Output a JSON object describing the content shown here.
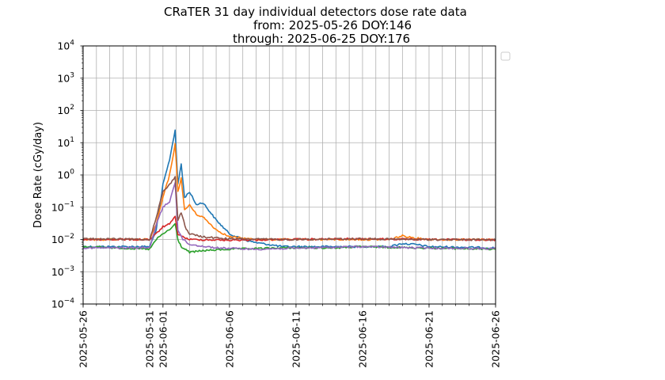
{
  "chart_data": {
    "type": "line",
    "title_lines": [
      "CRaTER 31 day individual detectors dose rate data",
      "from: 2025-05-26 DOY:146",
      "through: 2025-06-25 DOY:176"
    ],
    "xlabel": "",
    "ylabel": "Dose Rate (cGy/day)",
    "y_scale": "log",
    "ylim": [
      0.0001,
      10000
    ],
    "y_ticks": [
      {
        "value": 0.0001,
        "base": "10",
        "exp": "−4"
      },
      {
        "value": 0.001,
        "base": "10",
        "exp": "−3"
      },
      {
        "value": 0.01,
        "base": "10",
        "exp": "−2"
      },
      {
        "value": 0.1,
        "base": "10",
        "exp": "−1"
      },
      {
        "value": 1,
        "base": "10",
        "exp": "0"
      },
      {
        "value": 10,
        "base": "10",
        "exp": "1"
      },
      {
        "value": 100,
        "base": "10",
        "exp": "2"
      },
      {
        "value": 1000,
        "base": "10",
        "exp": "3"
      },
      {
        "value": 10000,
        "base": "10",
        "exp": "4"
      }
    ],
    "x_range": [
      "2025-05-26",
      "2025-06-26"
    ],
    "x_tick_labels": [
      "2025-05-26",
      "2025-05-31",
      "2025-06-01",
      "2025-06-06",
      "2025-06-11",
      "2025-06-16",
      "2025-06-21",
      "2025-06-26"
    ],
    "grid": true,
    "legend": "outside-right (empty)",
    "series": [
      {
        "color": "#1f77b4",
        "points": [
          [
            "2025-05-26",
            0.006
          ],
          [
            "2025-05-31",
            0.006
          ],
          [
            "2025-05-31T12:00",
            0.02
          ],
          [
            "2025-06-01",
            0.5
          ],
          [
            "2025-06-01T12:00",
            3
          ],
          [
            "2025-06-01T22:00",
            25
          ],
          [
            "2025-06-02T03:00",
            0.5
          ],
          [
            "2025-06-02T09:00",
            2.2
          ],
          [
            "2025-06-02T15:00",
            0.2
          ],
          [
            "2025-06-03",
            0.3
          ],
          [
            "2025-06-03T12:00",
            0.12
          ],
          [
            "2025-06-04",
            0.14
          ],
          [
            "2025-06-05",
            0.04
          ],
          [
            "2025-06-06",
            0.015
          ],
          [
            "2025-06-07",
            0.01
          ],
          [
            "2025-06-08",
            0.008
          ],
          [
            "2025-06-10",
            0.006
          ],
          [
            "2025-06-14",
            0.006
          ],
          [
            "2025-06-18",
            0.006
          ],
          [
            "2025-06-19",
            0.0075
          ],
          [
            "2025-06-20",
            0.007
          ],
          [
            "2025-06-21",
            0.006
          ],
          [
            "2025-06-26",
            0.0055
          ]
        ]
      },
      {
        "color": "#ff7f0e",
        "points": [
          [
            "2025-05-26",
            0.01
          ],
          [
            "2025-05-31",
            0.01
          ],
          [
            "2025-05-31T12:00",
            0.03
          ],
          [
            "2025-06-01",
            0.2
          ],
          [
            "2025-06-01T12:00",
            1.0
          ],
          [
            "2025-06-01T22:00",
            9
          ],
          [
            "2025-06-02T03:00",
            0.3
          ],
          [
            "2025-06-02T09:00",
            0.8
          ],
          [
            "2025-06-02T15:00",
            0.08
          ],
          [
            "2025-06-03",
            0.12
          ],
          [
            "2025-06-03T12:00",
            0.06
          ],
          [
            "2025-06-04",
            0.05
          ],
          [
            "2025-06-05",
            0.02
          ],
          [
            "2025-06-06",
            0.012
          ],
          [
            "2025-06-08",
            0.01
          ],
          [
            "2025-06-10",
            0.01
          ],
          [
            "2025-06-16",
            0.01
          ],
          [
            "2025-06-18",
            0.01
          ],
          [
            "2025-06-19",
            0.013
          ],
          [
            "2025-06-20",
            0.011
          ],
          [
            "2025-06-21",
            0.01
          ],
          [
            "2025-06-26",
            0.01
          ]
        ]
      },
      {
        "color": "#2ca02c",
        "points": [
          [
            "2025-05-26",
            0.006
          ],
          [
            "2025-05-31",
            0.005
          ],
          [
            "2025-05-31T12:00",
            0.01
          ],
          [
            "2025-06-01",
            0.015
          ],
          [
            "2025-06-01T12:00",
            0.02
          ],
          [
            "2025-06-01T22:00",
            0.03
          ],
          [
            "2025-06-02T03:00",
            0.01
          ],
          [
            "2025-06-02T09:00",
            0.006
          ],
          [
            "2025-06-03",
            0.004
          ],
          [
            "2025-06-04",
            0.0045
          ],
          [
            "2025-06-06",
            0.005
          ],
          [
            "2025-06-10",
            0.0055
          ],
          [
            "2025-06-14",
            0.0055
          ],
          [
            "2025-06-16",
            0.006
          ],
          [
            "2025-06-20",
            0.0055
          ],
          [
            "2025-06-26",
            0.005
          ]
        ]
      },
      {
        "color": "#d62728",
        "points": [
          [
            "2025-05-26",
            0.01
          ],
          [
            "2025-05-31",
            0.01
          ],
          [
            "2025-05-31T12:00",
            0.015
          ],
          [
            "2025-06-01",
            0.025
          ],
          [
            "2025-06-01T12:00",
            0.03
          ],
          [
            "2025-06-01T22:00",
            0.05
          ],
          [
            "2025-06-02T03:00",
            0.015
          ],
          [
            "2025-06-02T12:00",
            0.012
          ],
          [
            "2025-06-03",
            0.01
          ],
          [
            "2025-06-06",
            0.0095
          ],
          [
            "2025-06-10",
            0.01
          ],
          [
            "2025-06-16",
            0.0105
          ],
          [
            "2025-06-20",
            0.01
          ],
          [
            "2025-06-26",
            0.0098
          ]
        ]
      },
      {
        "color": "#9467bd",
        "points": [
          [
            "2025-05-26",
            0.0055
          ],
          [
            "2025-05-31",
            0.0055
          ],
          [
            "2025-05-31T12:00",
            0.03
          ],
          [
            "2025-06-01",
            0.1
          ],
          [
            "2025-06-01T12:00",
            0.15
          ],
          [
            "2025-06-01T22:00",
            0.6
          ],
          [
            "2025-06-02T03:00",
            0.02
          ],
          [
            "2025-06-02T12:00",
            0.01
          ],
          [
            "2025-06-03",
            0.007
          ],
          [
            "2025-06-05",
            0.0055
          ],
          [
            "2025-06-08",
            0.005
          ],
          [
            "2025-06-12",
            0.0055
          ],
          [
            "2025-06-16",
            0.006
          ],
          [
            "2025-06-20",
            0.0055
          ],
          [
            "2025-06-26",
            0.0052
          ]
        ]
      },
      {
        "color": "#8c564b",
        "points": [
          [
            "2025-05-26",
            0.0105
          ],
          [
            "2025-05-31",
            0.01
          ],
          [
            "2025-05-31T12:00",
            0.05
          ],
          [
            "2025-06-01",
            0.3
          ],
          [
            "2025-06-01T12:00",
            0.5
          ],
          [
            "2025-06-01T22:00",
            0.9
          ],
          [
            "2025-06-02T03:00",
            0.04
          ],
          [
            "2025-06-02T09:00",
            0.07
          ],
          [
            "2025-06-02T18:00",
            0.02
          ],
          [
            "2025-06-03",
            0.015
          ],
          [
            "2025-06-04",
            0.012
          ],
          [
            "2025-06-06",
            0.0105
          ],
          [
            "2025-06-10",
            0.01
          ],
          [
            "2025-06-16",
            0.0105
          ],
          [
            "2025-06-20",
            0.01
          ],
          [
            "2025-06-26",
            0.0098
          ]
        ]
      }
    ]
  }
}
